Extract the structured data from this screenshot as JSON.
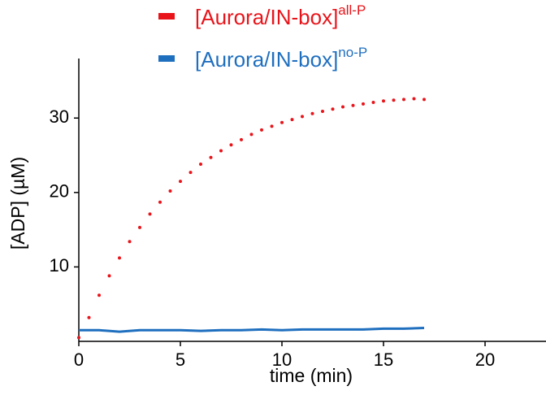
{
  "chart_data": {
    "type": "line",
    "x_label": "time (min)",
    "y_label": "[ADP] (µM)",
    "xlim": [
      0,
      23
    ],
    "xticks": [
      0,
      5,
      10,
      15,
      20
    ],
    "ylim": [
      0,
      38
    ],
    "yticks": [
      10,
      20,
      30
    ],
    "series": [
      {
        "name": "[Aurora/IN-box]",
        "name_superscript": "all-P",
        "color": "#e8141a",
        "style": "dots",
        "x": [
          0,
          0.5,
          1,
          1.5,
          2,
          2.5,
          3,
          3.5,
          4,
          4.5,
          5,
          5.5,
          6,
          6.5,
          7,
          7.5,
          8,
          8.5,
          9,
          9.5,
          10,
          10.5,
          11,
          11.5,
          12,
          12.5,
          13,
          13.5,
          14,
          14.5,
          15,
          15.5,
          16,
          16.5,
          17
        ],
        "values": [
          0.5,
          3.2,
          6.2,
          8.8,
          11.2,
          13.4,
          15.3,
          17.1,
          18.7,
          20.2,
          21.5,
          22.7,
          23.8,
          24.7,
          25.6,
          26.4,
          27.1,
          27.8,
          28.4,
          28.9,
          29.4,
          29.8,
          30.2,
          30.6,
          30.9,
          31.2,
          31.5,
          31.7,
          31.9,
          32.1,
          32.3,
          32.4,
          32.5,
          32.6,
          32.5
        ]
      },
      {
        "name": "[Aurora/IN-box]",
        "name_superscript": "no-P",
        "color": "#1f6fbf",
        "style": "line",
        "x": [
          0,
          1,
          2,
          3,
          4,
          5,
          6,
          7,
          8,
          9,
          10,
          11,
          12,
          13,
          14,
          15,
          16,
          17
        ],
        "values": [
          1.5,
          1.5,
          1.3,
          1.5,
          1.5,
          1.5,
          1.4,
          1.5,
          1.5,
          1.6,
          1.5,
          1.6,
          1.6,
          1.6,
          1.6,
          1.7,
          1.7,
          1.8
        ]
      }
    ]
  }
}
